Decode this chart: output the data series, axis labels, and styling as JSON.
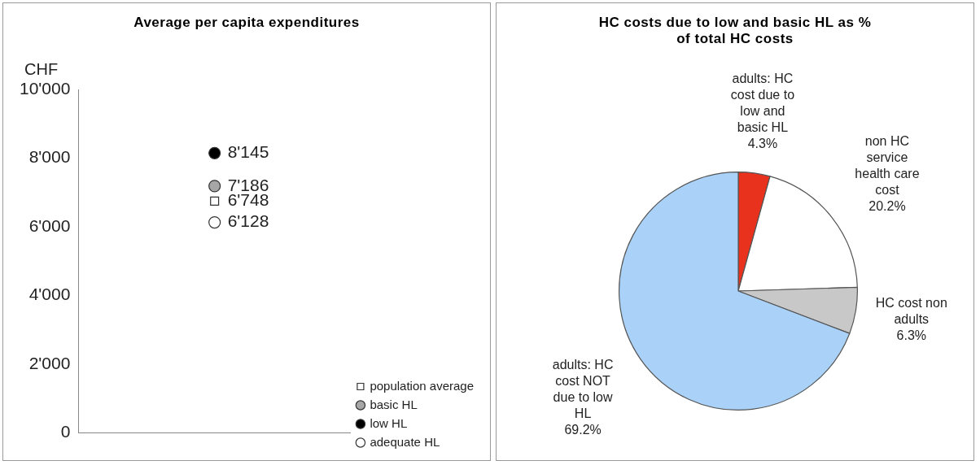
{
  "chart_data": [
    {
      "type": "scatter",
      "title": "Average per capita expenditures",
      "ylabel": "CHF",
      "categories": [
        null
      ],
      "ylim": [
        0,
        10000
      ],
      "yticks": [
        {
          "value": 0,
          "label": "0"
        },
        {
          "value": 2000,
          "label": "2'000"
        },
        {
          "value": 4000,
          "label": "4'000"
        },
        {
          "value": 6000,
          "label": "6'000"
        },
        {
          "value": 8000,
          "label": "8'000"
        },
        {
          "value": 10000,
          "label": "10'000"
        }
      ],
      "grid": false,
      "legend": "bottom right",
      "series": [
        {
          "name": "population average",
          "color": "#ffffff",
          "marker": "square",
          "values": [
            6748
          ],
          "value_labels": [
            "6'748"
          ]
        },
        {
          "name": "basic HL",
          "color": "#a6a6a6",
          "marker": "circle",
          "values": [
            7186
          ],
          "value_labels": [
            "7'186"
          ]
        },
        {
          "name": "low HL",
          "color": "#000000",
          "marker": "circle",
          "values": [
            8145
          ],
          "value_labels": [
            "8'145"
          ]
        },
        {
          "name": "adequate HL",
          "color": "#ffffff",
          "marker": "circle",
          "values": [
            6128
          ],
          "value_labels": [
            "6'128"
          ]
        }
      ]
    },
    {
      "type": "pie",
      "title": "HC costs due to low and basic HL as % of total HC costs",
      "legend": false,
      "categories": [
        "adults: HC cost due to low and basic HL",
        "non HC service health care cost",
        "HC cost non adults",
        "adults: HC cost NOT due to low HL"
      ],
      "values": [
        4.3,
        20.2,
        6.3,
        69.2
      ],
      "value_labels": [
        "4.3%",
        "20.2%",
        "6.3%",
        "69.2%"
      ],
      "colors": [
        "#e8321e",
        "#ffffff",
        "#c8c8c8",
        "#aad2f8"
      ]
    }
  ]
}
